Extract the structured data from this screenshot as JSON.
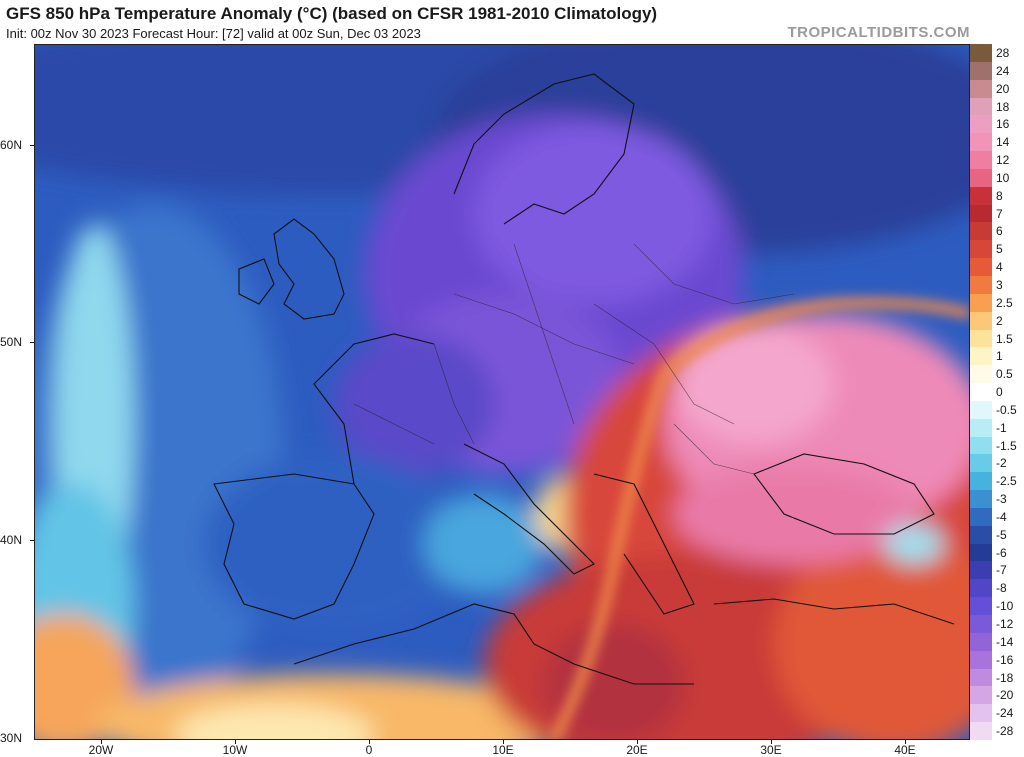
{
  "title": "GFS 850 hPa Temperature Anomaly (°C) (based on CFSR 1981-2010 Climatology)",
  "subtitle": "Init: 00z Nov 30 2023   Forecast Hour: [72]   valid at 00z Sun, Dec 03 2023",
  "brand": "TROPICALTIDBITS.COM",
  "lat_labels": [
    "60N",
    "50N",
    "40N",
    "30N"
  ],
  "lon_labels": [
    "20W",
    "10W",
    "0",
    "10E",
    "20E",
    "30E",
    "40E"
  ],
  "colorbar": {
    "labels": [
      "28",
      "24",
      "20",
      "18",
      "16",
      "14",
      "12",
      "10",
      "8",
      "7",
      "6",
      "5",
      "4",
      "3",
      "2.5",
      "2",
      "1.5",
      "1",
      "0.5",
      "0",
      "-0.5",
      "-1",
      "-1.5",
      "-2",
      "-2.5",
      "-3",
      "-4",
      "-5",
      "-6",
      "-7",
      "-8",
      "-10",
      "-12",
      "-14",
      "-16",
      "-18",
      "-20",
      "-24",
      "-28"
    ],
    "colors": [
      "#7a5a3a",
      "#a0706a",
      "#c98a90",
      "#e0a0b8",
      "#ec9fc2",
      "#f294b8",
      "#ef7ea2",
      "#e8657f",
      "#c8303a",
      "#b82a30",
      "#c83a34",
      "#d8463a",
      "#e65a38",
      "#f07a40",
      "#f8a050",
      "#fcc878",
      "#fde29a",
      "#fef4c6",
      "#fffbe8",
      "#ffffff",
      "#dff8fb",
      "#b7eef6",
      "#8fdff0",
      "#68cbe8",
      "#48b2de",
      "#3a90d0",
      "#2f6cc0",
      "#2a4ea8",
      "#243c96",
      "#3a3eb0",
      "#5146c8",
      "#6450d8",
      "#7a5ad8",
      "#9264d8",
      "#a874dc",
      "#c08ae0",
      "#d4a6e6",
      "#e4c2ee",
      "#f0daf4"
    ]
  },
  "colors": {
    "ocean_base": "#2f5fc0",
    "cold_core": "#7a50d8",
    "warm_core": "#d24a3e",
    "hot_core": "#f08fc0"
  }
}
